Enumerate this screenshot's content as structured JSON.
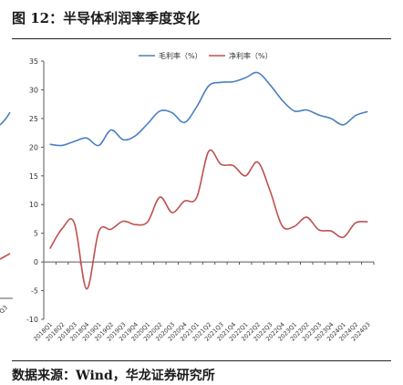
{
  "figure": {
    "title": "图 12：半导体利润率季度变化",
    "source": "数据来源：Wind，华龙证券研究所"
  },
  "colors": {
    "gross": "#4a7fc1",
    "net": "#c0504d",
    "axis": "#595959",
    "neighbor": "#4a7fc1"
  },
  "chart_data": {
    "type": "line",
    "categories": [
      "2018Q1",
      "2018Q2",
      "2018Q3",
      "2018Q4",
      "2019Q1",
      "2019Q2",
      "2019Q3",
      "2019Q4",
      "2020Q1",
      "2020Q2",
      "2020Q3",
      "2020Q4",
      "2021Q1",
      "2021Q2",
      "2021Q3",
      "2021Q4",
      "2022Q1",
      "2022Q2",
      "2022Q3",
      "2022Q4",
      "2023Q1",
      "2023Q2",
      "2023Q3",
      "2023Q4",
      "2024Q1",
      "2024Q2",
      "2024Q3"
    ],
    "series": [
      {
        "name": "毛利率（%）",
        "color": "#4a7fc1",
        "values": [
          20.5,
          20.3,
          21.0,
          21.6,
          20.3,
          23.0,
          21.3,
          22.0,
          24.1,
          26.3,
          26.0,
          24.3,
          27.0,
          30.7,
          31.3,
          31.4,
          32.1,
          33.0,
          30.9,
          28.2,
          26.3,
          26.5,
          25.6,
          25.0,
          23.9,
          25.5,
          26.2
        ]
      },
      {
        "name": "净利率（%）",
        "color": "#c0504d",
        "values": [
          2.3,
          5.8,
          6.8,
          -4.7,
          5.3,
          5.7,
          7.1,
          6.5,
          7.0,
          11.3,
          8.6,
          10.6,
          11.2,
          19.3,
          17.0,
          16.8,
          15.0,
          17.4,
          12.5,
          6.3,
          6.2,
          7.8,
          5.6,
          5.4,
          4.3,
          6.8,
          7.0
        ]
      }
    ],
    "ylim": [
      -10,
      35
    ],
    "yticks": [
      -10,
      -5,
      0,
      5,
      10,
      15,
      20,
      25,
      30,
      35
    ],
    "xticklabels": [
      "2018Q1",
      "2018Q2",
      "2018Q3",
      "2018Q4",
      "2019Q1",
      "2019Q2",
      "2019Q3",
      "2019Q4",
      "2020Q1",
      "2020Q2",
      "2020Q3",
      "2020Q4",
      "2021Q1",
      "2021Q2",
      "2021Q3",
      "2021Q4",
      "2022Q1",
      "2022Q2",
      "2022Q3",
      "2022Q4",
      "2023Q1",
      "2023Q2",
      "2023Q3",
      "2023Q4",
      "2024Q1",
      "2024Q2",
      "2024Q3"
    ],
    "legend": "top-center",
    "grid": false,
    "neighbor_fragment": {
      "label": "Q3"
    }
  }
}
